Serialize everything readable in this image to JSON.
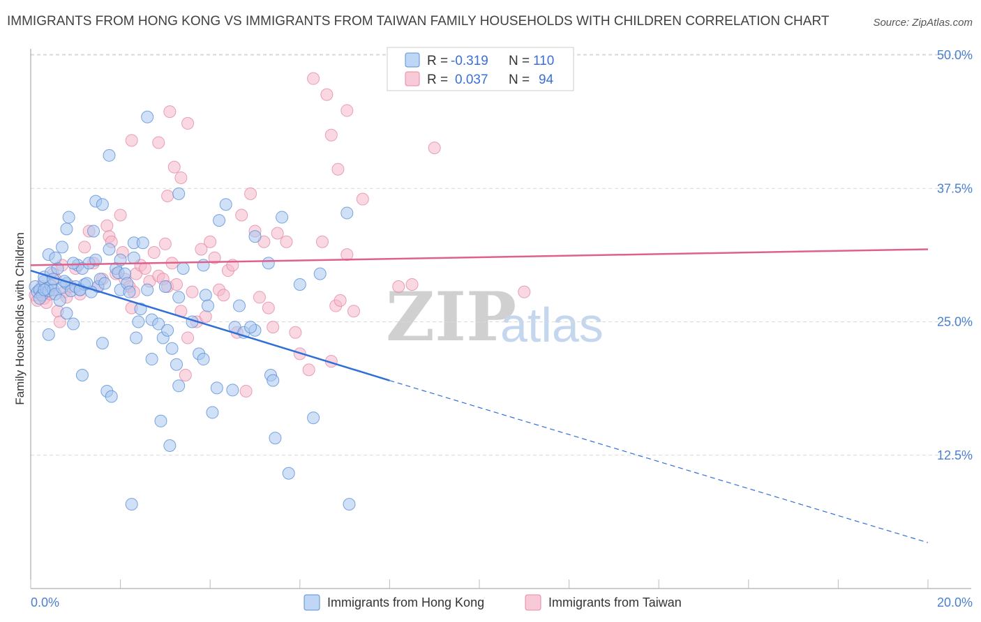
{
  "title": "IMMIGRANTS FROM HONG KONG VS IMMIGRANTS FROM TAIWAN FAMILY HOUSEHOLDS WITH CHILDREN CORRELATION CHART",
  "source": "Source: ZipAtlas.com",
  "watermark": {
    "part1": "ZIP",
    "part2": "atlas"
  },
  "legend": {
    "r_label": "R =",
    "n_label": "N =",
    "hk": {
      "r": "-0.319",
      "n": "110"
    },
    "tw": {
      "r": "0.037",
      "n": "94"
    }
  },
  "colors": {
    "hk_fill": "#a9c8f0",
    "hk_stroke": "#5b8fd6",
    "hk_line": "#2f6fd6",
    "tw_fill": "#f6b8cb",
    "tw_stroke": "#e38aa7",
    "tw_line": "#e0608c",
    "grid": "#d8d8d8",
    "tick_text": "#4a7fd0"
  },
  "chart_data": {
    "type": "scatter",
    "title": "IMMIGRANTS FROM HONG KONG VS IMMIGRANTS FROM TAIWAN FAMILY HOUSEHOLDS WITH CHILDREN CORRELATION CHART",
    "xlabel": "",
    "ylabel": "Family Households with Children",
    "xlim": [
      0,
      20
    ],
    "ylim": [
      0,
      52
    ],
    "x_tick_labels": [
      "0.0%",
      "20.0%"
    ],
    "y_ticks": [
      {
        "value": 12.5,
        "label": "12.5%"
      },
      {
        "value": 25.0,
        "label": "25.0%"
      },
      {
        "value": 37.5,
        "label": "37.5%"
      },
      {
        "value": 50.0,
        "label": "50.0%"
      }
    ],
    "series": [
      {
        "name": "Immigrants from Hong Kong",
        "r": -0.319,
        "n": 110,
        "trend": {
          "x0": 0.0,
          "y0": 29.8,
          "x1": 8.0,
          "y1": 19.5,
          "x_dash_end": 20.0,
          "y_dash_end": 4.3
        },
        "points": [
          [
            0.1,
            28.3
          ],
          [
            0.15,
            27.8
          ],
          [
            0.2,
            28.0
          ],
          [
            0.25,
            27.5
          ],
          [
            0.3,
            28.8
          ],
          [
            0.35,
            28.1
          ],
          [
            0.4,
            27.9
          ],
          [
            0.45,
            28.4
          ],
          [
            0.5,
            28.0
          ],
          [
            0.55,
            27.6
          ],
          [
            0.2,
            27.2
          ],
          [
            0.3,
            29.2
          ],
          [
            0.45,
            29.6
          ],
          [
            0.6,
            30.0
          ],
          [
            0.7,
            28.2
          ],
          [
            0.8,
            28.6
          ],
          [
            0.9,
            27.9
          ],
          [
            1.0,
            28.3
          ],
          [
            1.1,
            28.0
          ],
          [
            1.2,
            28.5
          ],
          [
            0.4,
            31.3
          ],
          [
            0.55,
            31.0
          ],
          [
            0.7,
            32.0
          ],
          [
            0.8,
            33.7
          ],
          [
            0.85,
            34.8
          ],
          [
            1.05,
            30.3
          ],
          [
            1.15,
            30.0
          ],
          [
            1.3,
            30.5
          ],
          [
            1.45,
            30.8
          ],
          [
            1.5,
            28.3
          ],
          [
            1.4,
            33.5
          ],
          [
            1.45,
            36.3
          ],
          [
            1.6,
            36.0
          ],
          [
            1.75,
            31.8
          ],
          [
            1.9,
            30.0
          ],
          [
            1.95,
            29.6
          ],
          [
            2.0,
            28.0
          ],
          [
            2.1,
            29.5
          ],
          [
            2.3,
            32.4
          ],
          [
            2.45,
            26.2
          ],
          [
            0.4,
            23.8
          ],
          [
            0.8,
            25.8
          ],
          [
            0.95,
            24.8
          ],
          [
            1.15,
            20.0
          ],
          [
            1.6,
            23.0
          ],
          [
            1.7,
            18.5
          ],
          [
            1.8,
            18.0
          ],
          [
            2.4,
            25.0
          ],
          [
            2.7,
            21.5
          ],
          [
            2.35,
            23.5
          ],
          [
            2.7,
            25.2
          ],
          [
            2.85,
            24.8
          ],
          [
            2.95,
            23.5
          ],
          [
            3.05,
            24.2
          ],
          [
            3.15,
            22.5
          ],
          [
            3.25,
            21.0
          ],
          [
            3.3,
            27.3
          ],
          [
            3.4,
            30.0
          ],
          [
            3.3,
            19.0
          ],
          [
            3.1,
            13.4
          ],
          [
            3.6,
            25.0
          ],
          [
            3.75,
            22.0
          ],
          [
            3.85,
            21.5
          ],
          [
            3.9,
            27.5
          ],
          [
            3.95,
            26.5
          ],
          [
            4.05,
            16.5
          ],
          [
            4.15,
            18.8
          ],
          [
            4.2,
            34.5
          ],
          [
            4.35,
            36.0
          ],
          [
            4.5,
            18.6
          ],
          [
            4.55,
            24.5
          ],
          [
            4.65,
            26.5
          ],
          [
            4.75,
            24.0
          ],
          [
            5.0,
            24.2
          ],
          [
            4.9,
            24.5
          ],
          [
            5.0,
            33.0
          ],
          [
            5.3,
            30.5
          ],
          [
            5.35,
            20.0
          ],
          [
            5.4,
            19.5
          ],
          [
            5.45,
            14.1
          ],
          [
            5.6,
            34.8
          ],
          [
            5.75,
            10.8
          ],
          [
            6.0,
            28.5
          ],
          [
            6.3,
            16.0
          ],
          [
            6.45,
            29.5
          ],
          [
            7.05,
            35.2
          ],
          [
            7.1,
            7.9
          ],
          [
            2.25,
            7.9
          ],
          [
            2.6,
            44.2
          ],
          [
            1.75,
            40.6
          ],
          [
            2.9,
            15.7
          ],
          [
            3.0,
            28.3
          ],
          [
            2.0,
            30.8
          ],
          [
            2.6,
            28.0
          ],
          [
            2.15,
            28.6
          ],
          [
            1.1,
            28.0
          ],
          [
            1.35,
            27.8
          ],
          [
            1.55,
            29.0
          ],
          [
            3.3,
            37.0
          ],
          [
            3.85,
            30.3
          ],
          [
            0.3,
            28.0
          ],
          [
            0.5,
            29.0
          ],
          [
            0.65,
            27.0
          ],
          [
            0.75,
            28.8
          ],
          [
            0.95,
            30.5
          ],
          [
            1.25,
            28.6
          ],
          [
            2.2,
            27.8
          ],
          [
            2.5,
            32.4
          ],
          [
            2.3,
            31.0
          ],
          [
            1.65,
            28.6
          ]
        ]
      },
      {
        "name": "Immigrants from Taiwan",
        "r": 0.037,
        "n": 94,
        "trend": {
          "x0": 0.0,
          "y0": 30.3,
          "x1": 20.0,
          "y1": 31.8
        },
        "points": [
          [
            0.1,
            27.5
          ],
          [
            0.15,
            27.0
          ],
          [
            0.2,
            27.8
          ],
          [
            0.25,
            28.3
          ],
          [
            0.3,
            27.2
          ],
          [
            0.35,
            26.8
          ],
          [
            0.4,
            28.0
          ],
          [
            0.45,
            27.6
          ],
          [
            0.5,
            29.5
          ],
          [
            0.55,
            29.0
          ],
          [
            0.6,
            26.0
          ],
          [
            0.65,
            25.0
          ],
          [
            0.7,
            30.3
          ],
          [
            0.75,
            27.8
          ],
          [
            0.8,
            27.3
          ],
          [
            0.9,
            28.3
          ],
          [
            1.0,
            30.0
          ],
          [
            1.1,
            27.6
          ],
          [
            1.2,
            32.0
          ],
          [
            1.3,
            33.5
          ],
          [
            1.4,
            30.5
          ],
          [
            1.5,
            28.3
          ],
          [
            1.6,
            29.0
          ],
          [
            1.7,
            34.0
          ],
          [
            1.75,
            33.0
          ],
          [
            1.8,
            32.5
          ],
          [
            1.9,
            29.5
          ],
          [
            2.0,
            35.0
          ],
          [
            2.05,
            31.5
          ],
          [
            2.1,
            29.0
          ],
          [
            2.2,
            28.3
          ],
          [
            2.25,
            26.3
          ],
          [
            2.3,
            27.8
          ],
          [
            2.35,
            29.5
          ],
          [
            2.45,
            30.3
          ],
          [
            2.55,
            30.0
          ],
          [
            2.65,
            28.8
          ],
          [
            2.75,
            31.5
          ],
          [
            2.85,
            29.3
          ],
          [
            2.95,
            29.0
          ],
          [
            3.0,
            32.3
          ],
          [
            3.05,
            28.3
          ],
          [
            3.15,
            30.5
          ],
          [
            3.25,
            28.5
          ],
          [
            3.35,
            26.0
          ],
          [
            3.45,
            20.0
          ],
          [
            3.5,
            23.5
          ],
          [
            3.6,
            27.8
          ],
          [
            3.7,
            25.0
          ],
          [
            3.8,
            31.8
          ],
          [
            3.9,
            25.5
          ],
          [
            4.0,
            32.5
          ],
          [
            4.1,
            31.0
          ],
          [
            4.2,
            28.0
          ],
          [
            4.3,
            27.5
          ],
          [
            4.4,
            29.8
          ],
          [
            4.5,
            30.3
          ],
          [
            4.6,
            24.0
          ],
          [
            4.7,
            35.0
          ],
          [
            4.8,
            18.5
          ],
          [
            4.9,
            37.0
          ],
          [
            5.0,
            33.5
          ],
          [
            5.1,
            27.3
          ],
          [
            5.2,
            32.5
          ],
          [
            5.3,
            26.3
          ],
          [
            5.4,
            24.5
          ],
          [
            5.5,
            33.3
          ],
          [
            5.7,
            32.5
          ],
          [
            5.9,
            24.0
          ],
          [
            6.0,
            22.0
          ],
          [
            6.2,
            20.5
          ],
          [
            6.5,
            32.5
          ],
          [
            6.7,
            21.3
          ],
          [
            6.8,
            26.5
          ],
          [
            6.9,
            27.0
          ],
          [
            7.05,
            31.3
          ],
          [
            7.2,
            26.0
          ],
          [
            7.4,
            36.5
          ],
          [
            2.25,
            42.0
          ],
          [
            2.85,
            41.8
          ],
          [
            3.05,
            36.8
          ],
          [
            3.2,
            39.5
          ],
          [
            3.35,
            38.5
          ],
          [
            3.1,
            44.7
          ],
          [
            3.5,
            43.6
          ],
          [
            6.3,
            47.8
          ],
          [
            6.7,
            42.5
          ],
          [
            6.85,
            39.3
          ],
          [
            6.6,
            46.3
          ],
          [
            7.05,
            44.8
          ],
          [
            8.2,
            28.3
          ],
          [
            8.5,
            28.5
          ],
          [
            9.0,
            41.3
          ],
          [
            11.0,
            27.8
          ]
        ]
      }
    ],
    "legend_position": "top-center"
  }
}
